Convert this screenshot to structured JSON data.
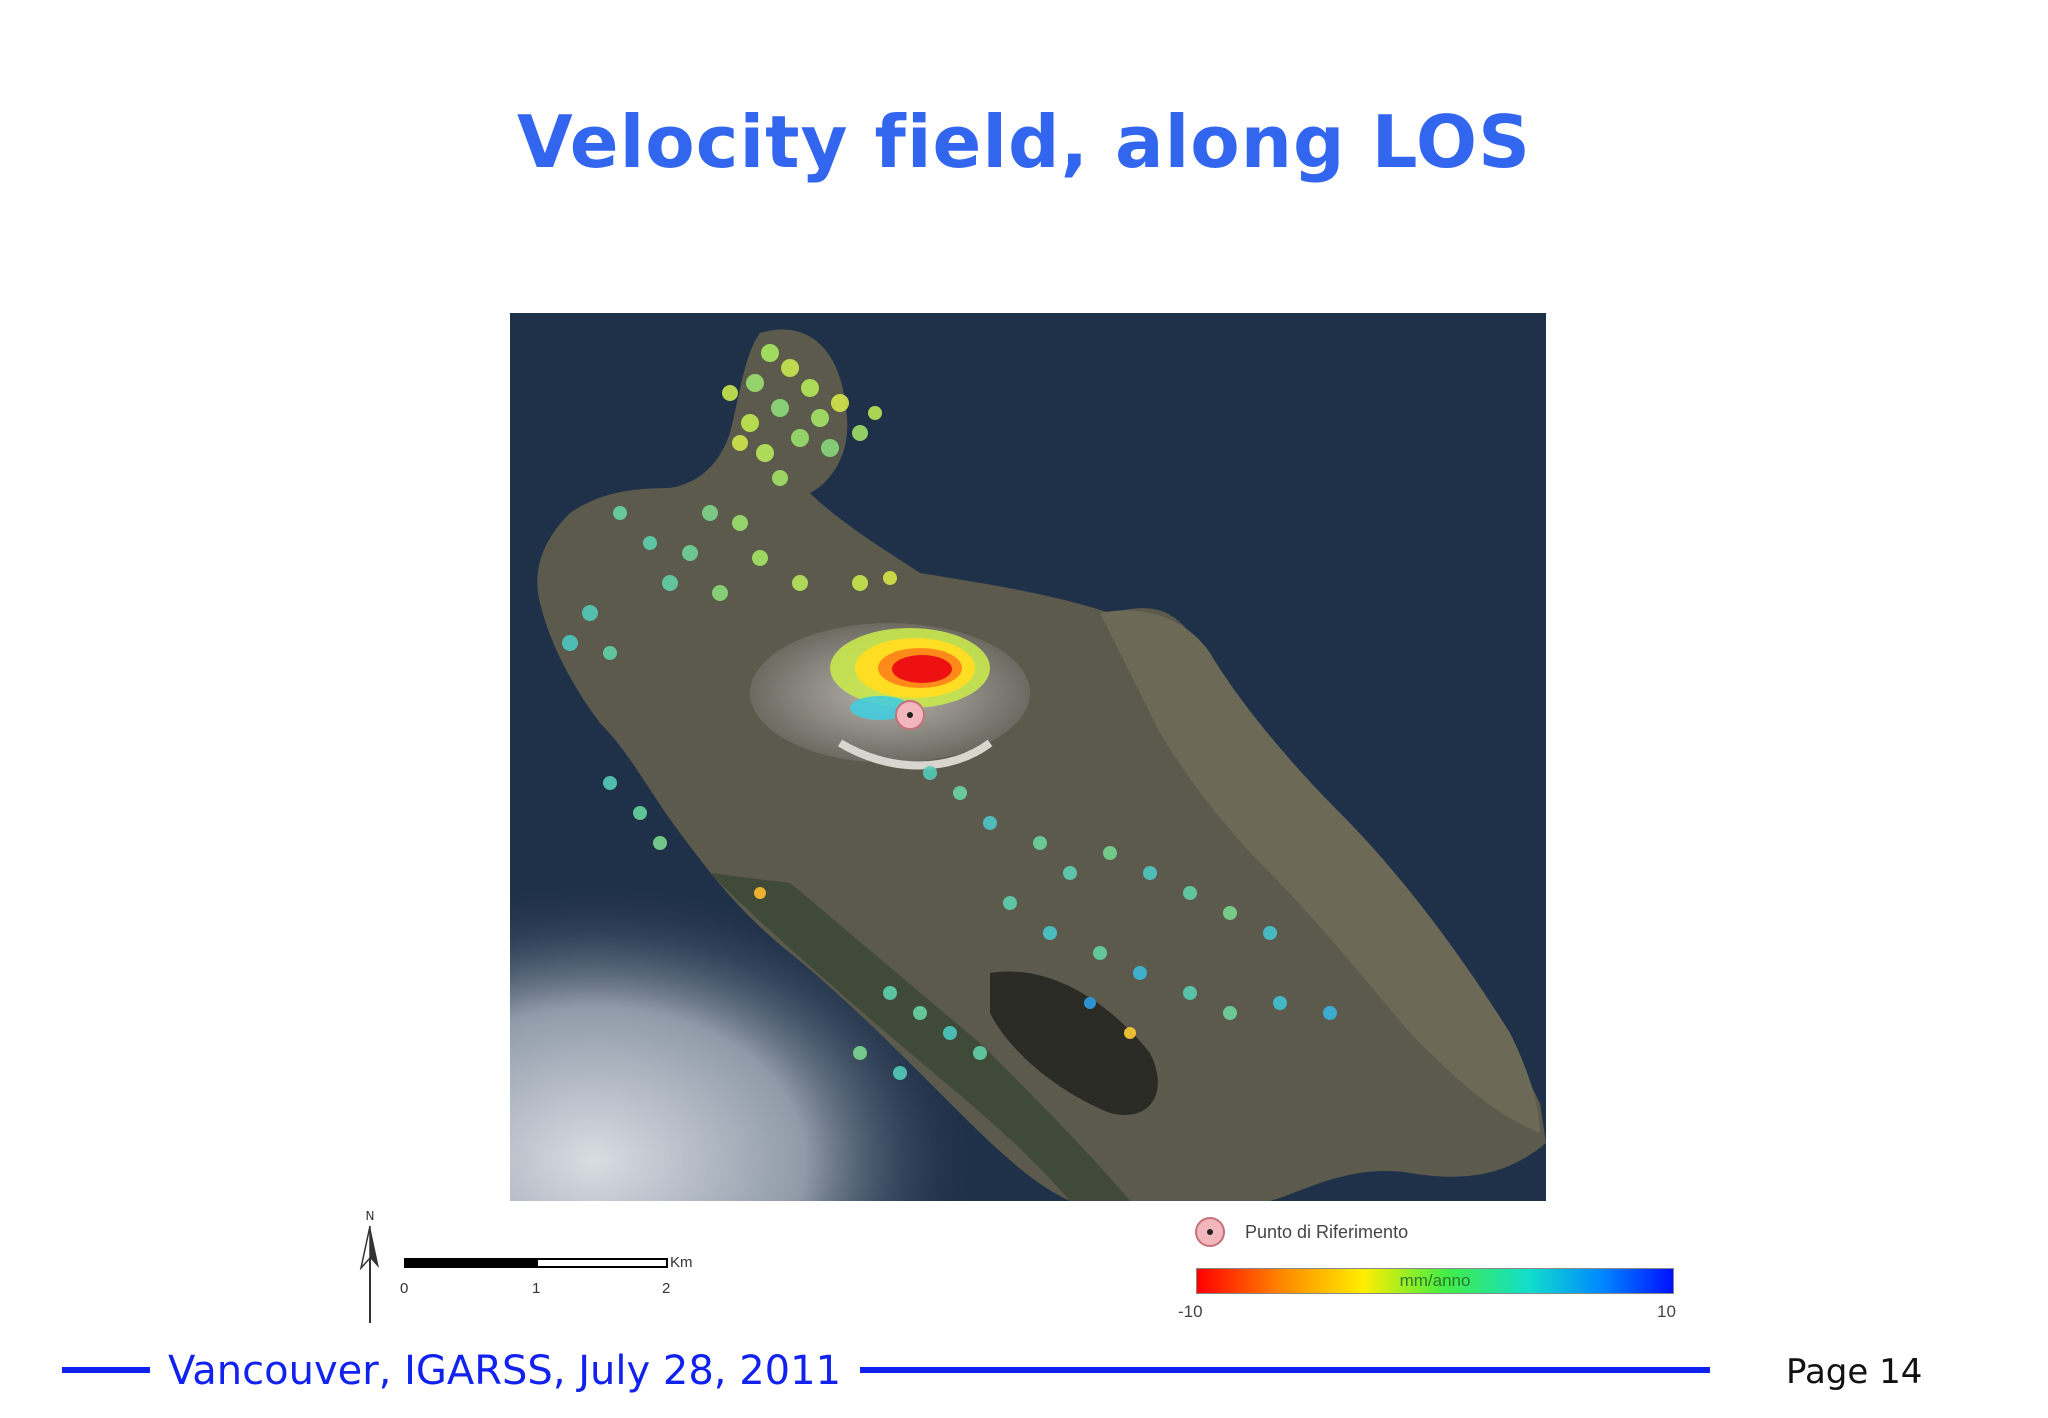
{
  "slide": {
    "title": "Velocity field, along LOS"
  },
  "map": {
    "legend": {
      "reference_point_label": "Punto di Riferimento",
      "colorbar_unit": "mm/anno",
      "colorbar_min": "-10",
      "colorbar_max": "10",
      "colors": {
        "min": "#ff0000",
        "mid": "#44ee44",
        "max": "#0011ff"
      }
    },
    "scalebar": {
      "unit": "Km",
      "ticks": [
        "0",
        "1",
        "2"
      ]
    },
    "north_arrow_label": "N"
  },
  "footer": {
    "event": "Vancouver, IGARSS, July 28, 2011",
    "page": "Page 14"
  }
}
